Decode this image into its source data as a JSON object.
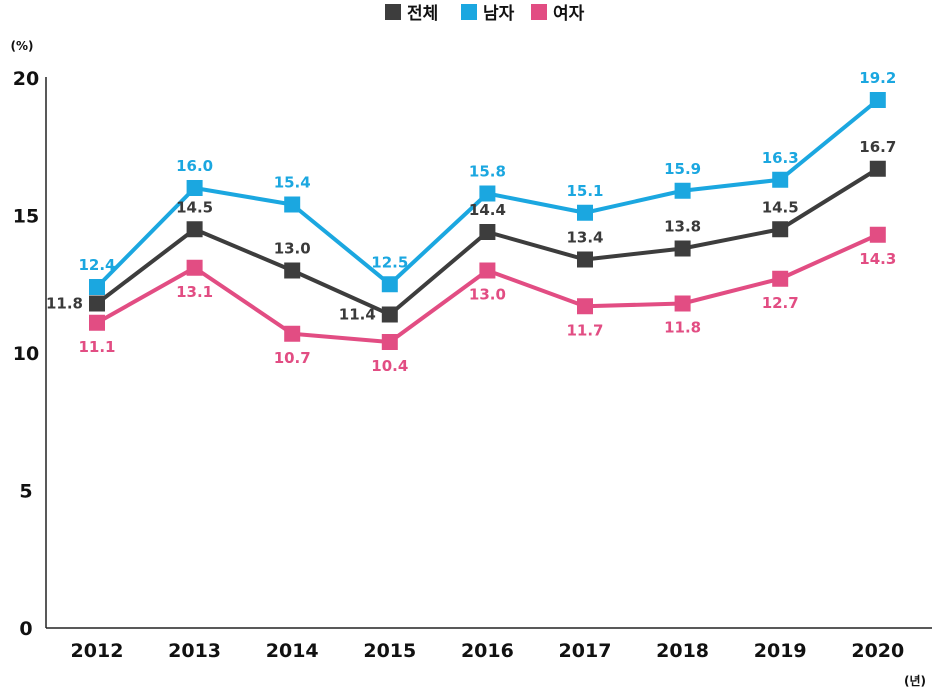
{
  "chart_data": {
    "type": "line",
    "title": "",
    "y_unit": "(%)",
    "x_unit": "(년)",
    "categories": [
      "2012",
      "2013",
      "2014",
      "2015",
      "2016",
      "2017",
      "2018",
      "2019",
      "2020"
    ],
    "yticks": [
      "0",
      "5",
      "10",
      "15",
      "20"
    ],
    "ylim": [
      0,
      20
    ],
    "grid": false,
    "legend_position": "top-center",
    "series": [
      {
        "name": "전체",
        "color": "#3d3d3d",
        "label_color": "#3a3a3a",
        "label_pos": [
          "left",
          "above",
          "above",
          "left",
          "above",
          "above",
          "above",
          "above",
          "above"
        ],
        "values": [
          11.8,
          14.5,
          13.0,
          11.4,
          14.4,
          13.4,
          13.8,
          14.5,
          16.7
        ],
        "labels": [
          "11.8",
          "14.5",
          "13.0",
          "11.4",
          "14.4",
          "13.4",
          "13.8",
          "14.5",
          "16.7"
        ]
      },
      {
        "name": "남자",
        "color": "#1ba7e0",
        "label_color": "#1ba7e0",
        "label_pos": [
          "above",
          "above",
          "above",
          "above",
          "above",
          "above",
          "above",
          "above",
          "above"
        ],
        "values": [
          12.4,
          16.0,
          15.4,
          12.5,
          15.8,
          15.1,
          15.9,
          16.3,
          19.2
        ],
        "labels": [
          "12.4",
          "16.0",
          "15.4",
          "12.5",
          "15.8",
          "15.1",
          "15.9",
          "16.3",
          "19.2"
        ]
      },
      {
        "name": "여자",
        "color": "#e24d83",
        "label_color": "#e24d83",
        "label_pos": [
          "below",
          "below",
          "below",
          "below",
          "below",
          "below",
          "below",
          "below",
          "below"
        ],
        "values": [
          11.1,
          13.1,
          10.7,
          10.4,
          13.0,
          11.7,
          11.8,
          12.7,
          14.3
        ],
        "labels": [
          "11.1",
          "13.1",
          "10.7",
          "10.4",
          "13.0",
          "11.7",
          "11.8",
          "12.7",
          "14.3"
        ]
      }
    ]
  }
}
